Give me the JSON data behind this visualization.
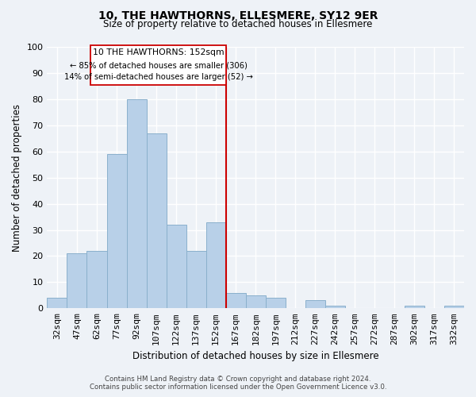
{
  "title": "10, THE HAWTHORNS, ELLESMERE, SY12 9ER",
  "subtitle": "Size of property relative to detached houses in Ellesmere",
  "xlabel": "Distribution of detached houses by size in Ellesmere",
  "ylabel": "Number of detached properties",
  "bar_labels": [
    "32sqm",
    "47sqm",
    "62sqm",
    "77sqm",
    "92sqm",
    "107sqm",
    "122sqm",
    "137sqm",
    "152sqm",
    "167sqm",
    "182sqm",
    "197sqm",
    "212sqm",
    "227sqm",
    "242sqm",
    "257sqm",
    "272sqm",
    "287sqm",
    "302sqm",
    "317sqm",
    "332sqm"
  ],
  "bar_values": [
    4,
    21,
    22,
    59,
    80,
    67,
    32,
    22,
    33,
    6,
    5,
    4,
    0,
    3,
    1,
    0,
    0,
    0,
    1,
    0,
    1
  ],
  "bar_color": "#b8d0e8",
  "bar_edge_color": "#8ab0cc",
  "vline_color": "#cc0000",
  "ylim": [
    0,
    100
  ],
  "annotation_title": "10 THE HAWTHORNS: 152sqm",
  "annotation_line1": "← 85% of detached houses are smaller (306)",
  "annotation_line2": "14% of semi-detached houses are larger (52) →",
  "annotation_box_color": "#ffffff",
  "annotation_box_edge": "#cc0000",
  "footer_line1": "Contains HM Land Registry data © Crown copyright and database right 2024.",
  "footer_line2": "Contains public sector information licensed under the Open Government Licence v3.0.",
  "background_color": "#eef2f7",
  "grid_color": "#ffffff"
}
